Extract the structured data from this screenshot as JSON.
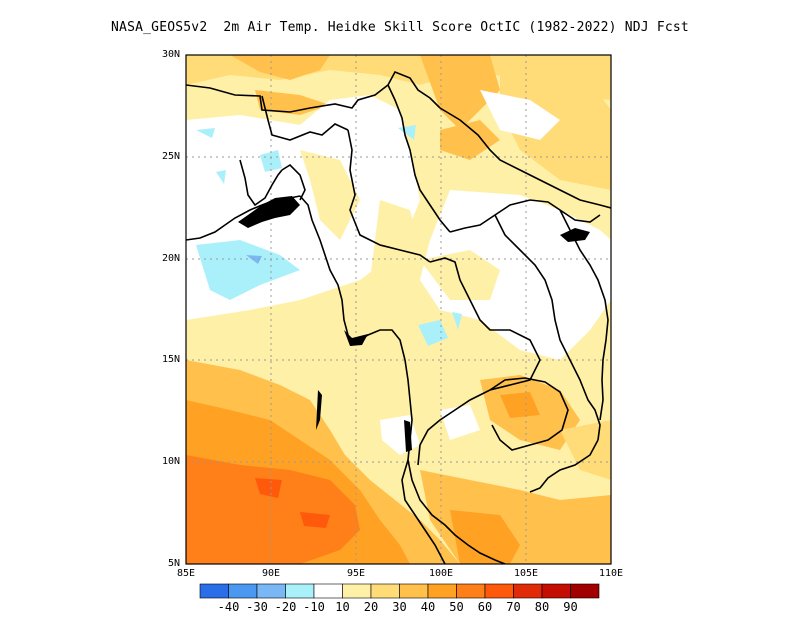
{
  "title": "NASA_GEOS5v2  2m Air Temp. Heidke Skill Score OctIC (1982-2022) NDJ Fcst",
  "map": {
    "lon_range": [
      85,
      110
    ],
    "lat_range": [
      5,
      30
    ],
    "lon_ticks": [
      "85E",
      "90E",
      "95E",
      "100E",
      "105E",
      "110E"
    ],
    "lat_ticks": [
      "30N",
      "25N",
      "20N",
      "15N",
      "10N",
      "5N"
    ],
    "grid": "dotted",
    "projection": "lat-lon"
  },
  "colorbar": {
    "colors": [
      "#2a6fe8",
      "#4a98f0",
      "#7ab8f5",
      "#aaf0fa",
      "#ffffff",
      "#fff0a8",
      "#ffdc78",
      "#ffc04c",
      "#ffa224",
      "#ff7f18",
      "#ff5a0c",
      "#e02a08",
      "#c40e04",
      "#a00000"
    ],
    "labels": [
      "-40",
      "-30",
      "-20",
      "-10",
      "10",
      "20",
      "30",
      "40",
      "50",
      "60",
      "70",
      "80",
      "90"
    ]
  }
}
